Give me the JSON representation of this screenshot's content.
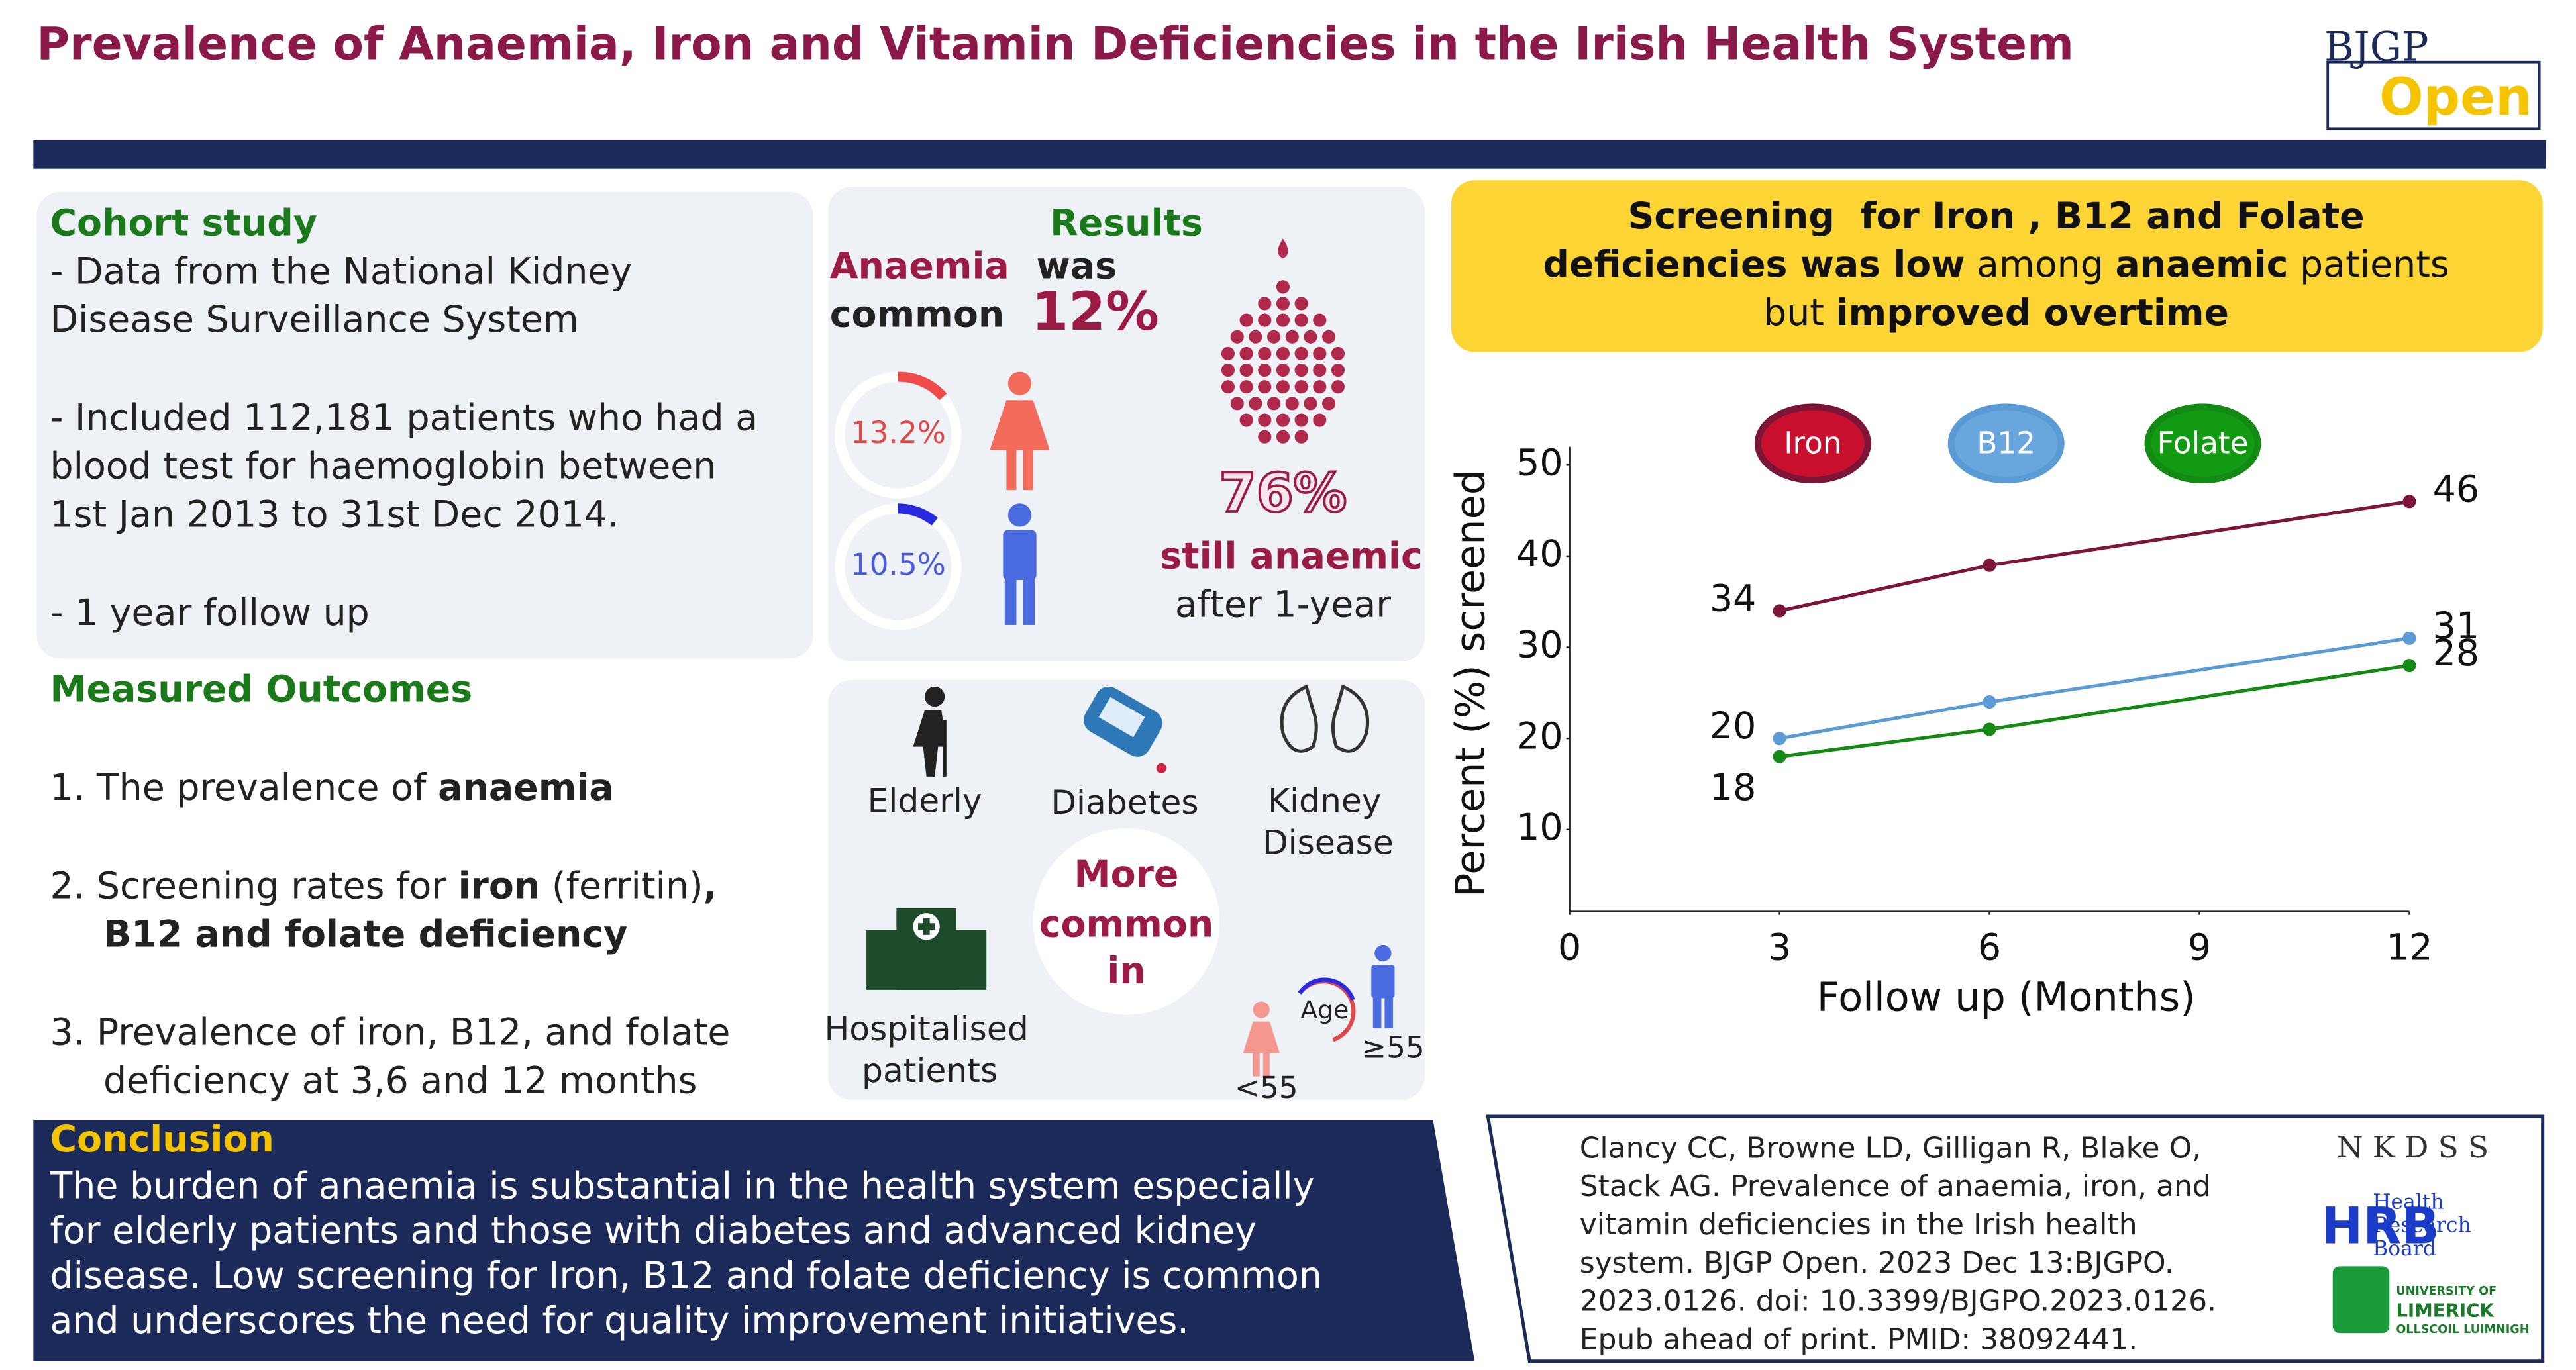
{
  "header": {
    "title": "Prevalence of Anaemia, Iron and Vitamin Deficiencies in the Irish Health System",
    "logo": [
      "BJGP",
      "Open"
    ]
  },
  "cohort": {
    "heading": "Cohort study",
    "paragraphs": [
      [
        "- Data from the National Kidney",
        "Disease Surveillance System"
      ],
      [
        "- Included 112,181 patients who had a",
        "blood test for haemoglobin between",
        "1st Jan 2013 to 31st Dec 2014."
      ],
      [
        "- 1 year follow up"
      ]
    ]
  },
  "outcomes": {
    "heading": "Measured Outcomes",
    "lines": [
      [
        {
          "text": "1. The prevalence of "
        },
        {
          "text": "anaemia",
          "bold": true
        }
      ],
      [
        {
          "text": "2. Screening rates for "
        },
        {
          "text": "iron",
          "bold": true
        },
        {
          "text": " (ferritin)"
        },
        {
          "text": ",",
          "bold": true
        }
      ],
      [
        {
          "text": "B12 and folate deficiency",
          "bold": true
        }
      ],
      [
        {
          "text": "3. Prevalence of iron, B12, and folate"
        }
      ],
      [
        {
          "text": "deficiency at 3,6 and 12 months"
        }
      ]
    ]
  },
  "results": {
    "heading": "Results",
    "anaemia": "Anaemia",
    "was": "was",
    "common": "common",
    "overall": "12%",
    "female": "13.2%",
    "male": "10.5%",
    "still_pct": "76%",
    "still": "still anaemic",
    "after": "after 1-year"
  },
  "risk": {
    "elderly": "Elderly",
    "diabetes": "Diabetes",
    "kidney": [
      "Kidney",
      "Disease"
    ],
    "hospital": [
      "Hospitalised",
      "patients"
    ],
    "more": [
      "More",
      "common",
      "in"
    ],
    "age": "Age",
    "young": "<55",
    "old": "≥55"
  },
  "screening": {
    "lines": [
      [
        {
          "text": "Screening  for Iron , B12 and Folate",
          "bold": true
        }
      ],
      [
        {
          "text": "deficiencies was low",
          "bold": true
        },
        {
          "text": " among "
        },
        {
          "text": "anaemic",
          "bold": true
        },
        {
          "text": " patients"
        }
      ],
      [
        {
          "text": "but "
        },
        {
          "text": "improved overtime",
          "bold": true
        }
      ]
    ]
  },
  "chart_data": {
    "type": "line",
    "x_label": "Follow up (Months)",
    "y_label": "Percent (%) screened",
    "x": [
      3,
      6,
      12
    ],
    "xlim": [
      0,
      12
    ],
    "xticks": [
      0,
      3,
      6,
      9,
      12
    ],
    "ylim": [
      1,
      52
    ],
    "yticks": [
      10,
      20,
      30,
      40,
      50
    ],
    "grid": false,
    "series": [
      {
        "name": "Iron",
        "color": "#7d1538",
        "legend_color": "#c8102e",
        "values": [
          34,
          39,
          46
        ],
        "value_labels": [
          "34",
          null,
          "46"
        ]
      },
      {
        "name": "B12",
        "color": "#5b9bd5",
        "legend_color": "#6aa6de",
        "values": [
          20,
          24,
          31
        ],
        "value_labels": [
          "20",
          null,
          "31"
        ]
      },
      {
        "name": "Folate",
        "color": "#138a13",
        "legend_color": "#139a13",
        "values": [
          18,
          21,
          28
        ],
        "value_labels": [
          "18",
          null,
          "28"
        ]
      }
    ]
  },
  "conclusion": {
    "heading": "Conclusion",
    "lines": [
      "The burden of anaemia is substantial in the health system especially",
      "for elderly patients and those with diabetes and advanced kidney",
      "disease. Low screening for Iron, B12 and folate deficiency is common",
      "and underscores the need for quality improvement initiatives."
    ]
  },
  "citation": {
    "lines": [
      "Clancy CC, Browne LD, Gilligan R, Blake O,",
      "Stack AG. Prevalence of anaemia, iron, and",
      "vitamin deficiencies in the Irish health",
      "system. BJGP Open. 2023 Dec 13:BJGPO.",
      "2023.0126. doi: 10.3399/BJGPO.2023.0126.",
      "Epub ahead of print. PMID: 38092441."
    ]
  },
  "logos": {
    "nkdss": "N K D S S",
    "hrb": "HRB",
    "hrb_name": [
      "Health",
      "Research",
      "Board"
    ],
    "ul": [
      "UNIVERSITY OF",
      "LIMERICK",
      "OLLSCOIL LUIMNIGH"
    ]
  }
}
